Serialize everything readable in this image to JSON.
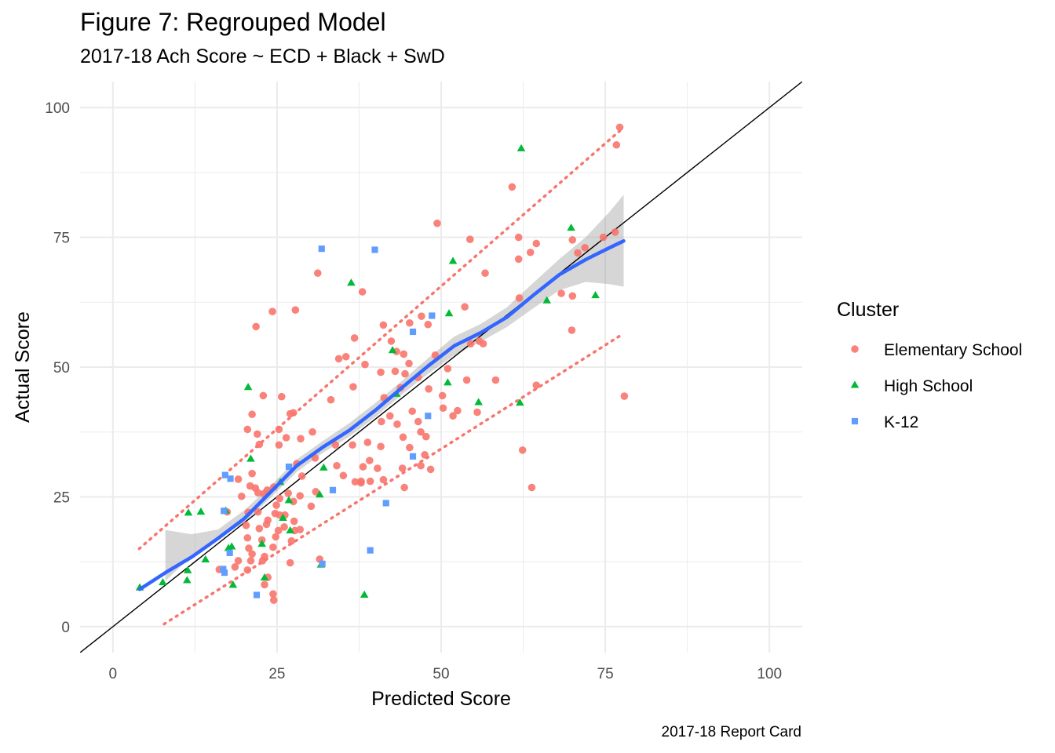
{
  "chart_data": {
    "type": "scatter",
    "title": "Figure 7: Regrouped Model",
    "subtitle": "2017-18 Ach Score ~ ECD + Black + SwD",
    "xlabel": "Predicted Score",
    "ylabel": "Actual Score",
    "caption": "2017-18 Report Card",
    "xlim": [
      -5,
      105
    ],
    "ylim": [
      -5,
      105
    ],
    "x_ticks": [
      0,
      25,
      50,
      75,
      100
    ],
    "y_ticks": [
      0,
      25,
      50,
      75,
      100
    ],
    "x_tick_labels": [
      "0",
      "25",
      "50",
      "75",
      "100"
    ],
    "y_tick_labels": [
      "0",
      "25",
      "50",
      "75",
      "100"
    ],
    "grid": true,
    "legend": {
      "title": "Cluster",
      "position": "right",
      "entries": [
        "Elementary School",
        "High School",
        "K-12"
      ]
    },
    "colors": {
      "Elementary School": "#F8766D",
      "High School": "#00BA38",
      "K-12": "#619CFF",
      "smooth": "#3366FF",
      "band": "#999999",
      "identity": "#000000"
    },
    "series": [
      {
        "name": "Elementary School",
        "shape": "circle",
        "points": [
          [
            77.2,
            96.2
          ],
          [
            76.7,
            92.8
          ],
          [
            60.8,
            84.7
          ],
          [
            49.4,
            77.7
          ],
          [
            61.8,
            75.0
          ],
          [
            54.4,
            74.6
          ],
          [
            64.5,
            73.8
          ],
          [
            74.7,
            75.0
          ],
          [
            76.5,
            76.0
          ],
          [
            70.0,
            74.5
          ],
          [
            71.9,
            73.0
          ],
          [
            70.8,
            72.0
          ],
          [
            63.6,
            72.1
          ],
          [
            61.8,
            70.8
          ],
          [
            31.2,
            68.1
          ],
          [
            56.7,
            68.1
          ],
          [
            61.9,
            63.3
          ],
          [
            68.3,
            64.2
          ],
          [
            70.0,
            63.7
          ],
          [
            53.6,
            61.6
          ],
          [
            24.3,
            60.7
          ],
          [
            27.8,
            61.0
          ],
          [
            38.0,
            64.5
          ],
          [
            21.8,
            57.8
          ],
          [
            41.2,
            58.1
          ],
          [
            47.0,
            59.8
          ],
          [
            48.0,
            58.2
          ],
          [
            45.2,
            58.5
          ],
          [
            36.8,
            55.6
          ],
          [
            54.5,
            54.5
          ],
          [
            55.8,
            55.0
          ],
          [
            56.4,
            54.5
          ],
          [
            42.4,
            55.0
          ],
          [
            43.2,
            53.0
          ],
          [
            35.5,
            52.0
          ],
          [
            34.4,
            51.6
          ],
          [
            44.3,
            52.5
          ],
          [
            49.1,
            52.3
          ],
          [
            51.0,
            49.7
          ],
          [
            43.0,
            49.2
          ],
          [
            44.5,
            48.7
          ],
          [
            45.1,
            50.7
          ],
          [
            38.4,
            50.5
          ],
          [
            46.5,
            48.0
          ],
          [
            53.9,
            47.5
          ],
          [
            58.3,
            47.5
          ],
          [
            40.8,
            49.0
          ],
          [
            36.6,
            46.2
          ],
          [
            50.2,
            44.5
          ],
          [
            64.5,
            46.5
          ],
          [
            43.8,
            46.0
          ],
          [
            41.3,
            44.1
          ],
          [
            22.9,
            44.5
          ],
          [
            25.7,
            44.3
          ],
          [
            33.2,
            43.7
          ],
          [
            50.3,
            42.1
          ],
          [
            21.2,
            40.9
          ],
          [
            27.0,
            41.0
          ],
          [
            27.5,
            41.2
          ],
          [
            42.2,
            40.6
          ],
          [
            45.6,
            41.5
          ],
          [
            52.5,
            41.6
          ],
          [
            55.5,
            41.3
          ],
          [
            40.9,
            39.5
          ],
          [
            43.3,
            39.0
          ],
          [
            46.5,
            39.5
          ],
          [
            51.8,
            40.6
          ],
          [
            20.5,
            38.0
          ],
          [
            25.3,
            38.0
          ],
          [
            28.6,
            36.2
          ],
          [
            22.0,
            37.1
          ],
          [
            30.4,
            37.5
          ],
          [
            22.3,
            35.1
          ],
          [
            26.4,
            36.4
          ],
          [
            44.2,
            36.5
          ],
          [
            46.9,
            37.5
          ],
          [
            47.7,
            36.6
          ],
          [
            38.8,
            35.5
          ],
          [
            36.5,
            35.0
          ],
          [
            25.3,
            35.0
          ],
          [
            33.9,
            35.0
          ],
          [
            45.2,
            34.5
          ],
          [
            40.8,
            34.7
          ],
          [
            47.5,
            33.1
          ],
          [
            30.8,
            32.5
          ],
          [
            39.1,
            32.0
          ],
          [
            28.0,
            31.4
          ],
          [
            34.1,
            31.0
          ],
          [
            46.9,
            31.0
          ],
          [
            38.1,
            30.8
          ],
          [
            40.3,
            30.5
          ],
          [
            44.1,
            30.5
          ],
          [
            48.4,
            30.3
          ],
          [
            21.2,
            29.5
          ],
          [
            28.8,
            29.0
          ],
          [
            35.1,
            29.1
          ],
          [
            39.2,
            28.0
          ],
          [
            36.9,
            27.9
          ],
          [
            41.2,
            28.3
          ],
          [
            20.9,
            27.1
          ],
          [
            19.1,
            28.4
          ],
          [
            21.7,
            26.7
          ],
          [
            37.8,
            27.7
          ],
          [
            30.9,
            26.0
          ],
          [
            44.4,
            26.8
          ],
          [
            23.5,
            26.3
          ],
          [
            24.5,
            26.9
          ],
          [
            22.1,
            25.8
          ],
          [
            23.0,
            25.6
          ],
          [
            19.6,
            25.1
          ],
          [
            26.7,
            25.7
          ],
          [
            28.5,
            25.2
          ],
          [
            25.4,
            24.7
          ],
          [
            27.5,
            24.1
          ],
          [
            30.2,
            23.2
          ],
          [
            24.9,
            23.4
          ],
          [
            20.6,
            22.0
          ],
          [
            24.7,
            21.8
          ],
          [
            26.2,
            21.5
          ],
          [
            17.4,
            22.1
          ],
          [
            22.1,
            22.1
          ],
          [
            23.6,
            20.5
          ],
          [
            25.4,
            21.5
          ],
          [
            27.6,
            20.3
          ],
          [
            23.4,
            19.7
          ],
          [
            20.3,
            19.5
          ],
          [
            26.1,
            19.2
          ],
          [
            22.3,
            18.9
          ],
          [
            25.2,
            18.5
          ],
          [
            27.7,
            18.5
          ],
          [
            28.5,
            18.7
          ],
          [
            20.5,
            17.1
          ],
          [
            22.7,
            16.7
          ],
          [
            24.8,
            17.3
          ],
          [
            27.2,
            16.5
          ],
          [
            20.7,
            15.1
          ],
          [
            24.4,
            15.3
          ],
          [
            21.2,
            14.0
          ],
          [
            23.1,
            13.5
          ],
          [
            19.1,
            12.7
          ],
          [
            21.0,
            12.7
          ],
          [
            22.8,
            12.7
          ],
          [
            27.0,
            12.3
          ],
          [
            31.5,
            13.0
          ],
          [
            18.6,
            11.5
          ],
          [
            16.2,
            11.0
          ],
          [
            20.5,
            10.9
          ],
          [
            23.6,
            9.5
          ],
          [
            23.1,
            8.1
          ],
          [
            24.4,
            6.3
          ],
          [
            24.5,
            5.1
          ],
          [
            37.8,
            28.0
          ],
          [
            48.1,
            45.8
          ],
          [
            62.4,
            34.0
          ],
          [
            63.8,
            26.8
          ],
          [
            69.9,
            57.1
          ],
          [
            77.9,
            44.4
          ]
        ]
      },
      {
        "name": "High School",
        "shape": "triangle",
        "points": [
          [
            62.2,
            92.1
          ],
          [
            69.8,
            76.8
          ],
          [
            51.8,
            70.4
          ],
          [
            36.3,
            66.2
          ],
          [
            73.5,
            63.8
          ],
          [
            66.1,
            62.8
          ],
          [
            51.2,
            60.3
          ],
          [
            20.6,
            46.1
          ],
          [
            42.6,
            53.2
          ],
          [
            51.0,
            47.0
          ],
          [
            55.7,
            43.2
          ],
          [
            62.0,
            43.1
          ],
          [
            43.2,
            44.8
          ],
          [
            21.0,
            32.3
          ],
          [
            32.1,
            30.6
          ],
          [
            25.5,
            27.8
          ],
          [
            26.8,
            24.3
          ],
          [
            17.2,
            22.3
          ],
          [
            13.4,
            22.1
          ],
          [
            11.5,
            21.9
          ],
          [
            25.9,
            20.9
          ],
          [
            31.5,
            25.4
          ],
          [
            27.0,
            18.5
          ],
          [
            17.6,
            15.1
          ],
          [
            18.1,
            15.4
          ],
          [
            14.1,
            12.9
          ],
          [
            22.7,
            15.9
          ],
          [
            11.4,
            10.8
          ],
          [
            31.7,
            11.9
          ],
          [
            23.1,
            9.4
          ],
          [
            11.3,
            8.9
          ],
          [
            18.3,
            8.0
          ],
          [
            7.6,
            8.5
          ],
          [
            4.1,
            7.5
          ],
          [
            38.3,
            6.1
          ]
        ]
      },
      {
        "name": "K-12",
        "shape": "square",
        "points": [
          [
            31.8,
            72.8
          ],
          [
            39.9,
            72.6
          ],
          [
            48.6,
            59.9
          ],
          [
            45.7,
            56.8
          ],
          [
            48.0,
            40.6
          ],
          [
            45.7,
            32.8
          ],
          [
            26.8,
            30.8
          ],
          [
            17.1,
            29.2
          ],
          [
            17.9,
            28.5
          ],
          [
            33.5,
            26.3
          ],
          [
            41.6,
            23.8
          ],
          [
            16.9,
            22.3
          ],
          [
            39.2,
            14.7
          ],
          [
            17.8,
            14.2
          ],
          [
            31.9,
            12.1
          ],
          [
            16.8,
            11.1
          ],
          [
            17.0,
            10.4
          ],
          [
            21.9,
            6.1
          ]
        ]
      }
    ],
    "smooth": {
      "method": "loess",
      "x": [
        4.1,
        8,
        12,
        16,
        20,
        24,
        28,
        32,
        36,
        40,
        44,
        48,
        52,
        56,
        60,
        64,
        68,
        72,
        75.5,
        77.8
      ],
      "y": [
        7.2,
        10.4,
        13.4,
        17.0,
        20.8,
        25.9,
        31.0,
        34.6,
        37.8,
        41.7,
        46.0,
        50.2,
        54.1,
        56.6,
        59.6,
        63.8,
        67.8,
        70.7,
        72.9,
        74.3
      ],
      "lower": [
        null,
        8.8,
        13.6,
        17.0,
        20.0,
        24.8,
        29.8,
        33.5,
        36.6,
        40.4,
        44.7,
        48.7,
        52.3,
        54.9,
        57.7,
        61.3,
        64.8,
        66.4,
        66.0,
        65.5
      ],
      "upper": [
        null,
        18.6,
        17.8,
        18.7,
        22.4,
        27.1,
        32.2,
        35.8,
        39.2,
        43.1,
        47.3,
        51.7,
        55.9,
        58.3,
        61.5,
        66.2,
        70.8,
        75.0,
        79.7,
        83.2
      ]
    },
    "identity_line": {
      "slope": 1,
      "intercept": 0
    },
    "prediction_bands": {
      "style": "dotted",
      "color": "#F8766D",
      "lower": {
        "x": [
          7.8,
          77.2
        ],
        "y": [
          0.5,
          56.0
        ]
      },
      "upper": {
        "x": [
          4.0,
          77.2
        ],
        "y": [
          15.0,
          95.5
        ]
      }
    }
  }
}
